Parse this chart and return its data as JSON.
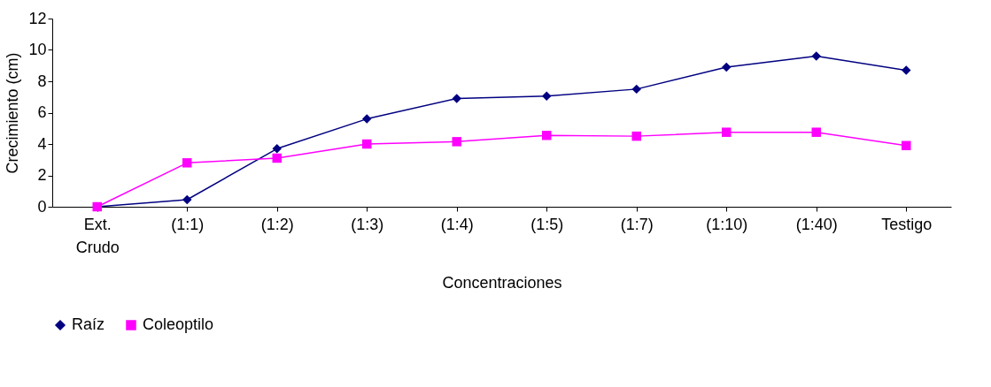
{
  "chart_data": {
    "type": "line",
    "xlabel": "Concentraciones",
    "ylabel": "Crecimiento (cm)",
    "categories": [
      "Ext. Crudo",
      "(1:1)",
      "(1:2)",
      "(1:3)",
      "(1:4)",
      "(1:5)",
      "(1:7)",
      "(1:10)",
      "(1:40)",
      "Testigo"
    ],
    "series": [
      {
        "name": "Raíz",
        "color": "#000080",
        "marker": "diamond",
        "values": [
          0,
          0.45,
          3.7,
          5.6,
          6.9,
          7.05,
          7.5,
          8.9,
          9.6,
          8.7
        ]
      },
      {
        "name": "Coleoptilo",
        "color": "#ff00ff",
        "marker": "square",
        "values": [
          0,
          2.8,
          3.1,
          4.0,
          4.15,
          4.55,
          4.5,
          4.75,
          4.75,
          3.9
        ]
      }
    ],
    "ylim": [
      0,
      12
    ],
    "yticks": [
      0,
      2,
      4,
      6,
      8,
      10,
      12
    ],
    "grid": false,
    "legend": "bottom",
    "line_style": "solid"
  }
}
